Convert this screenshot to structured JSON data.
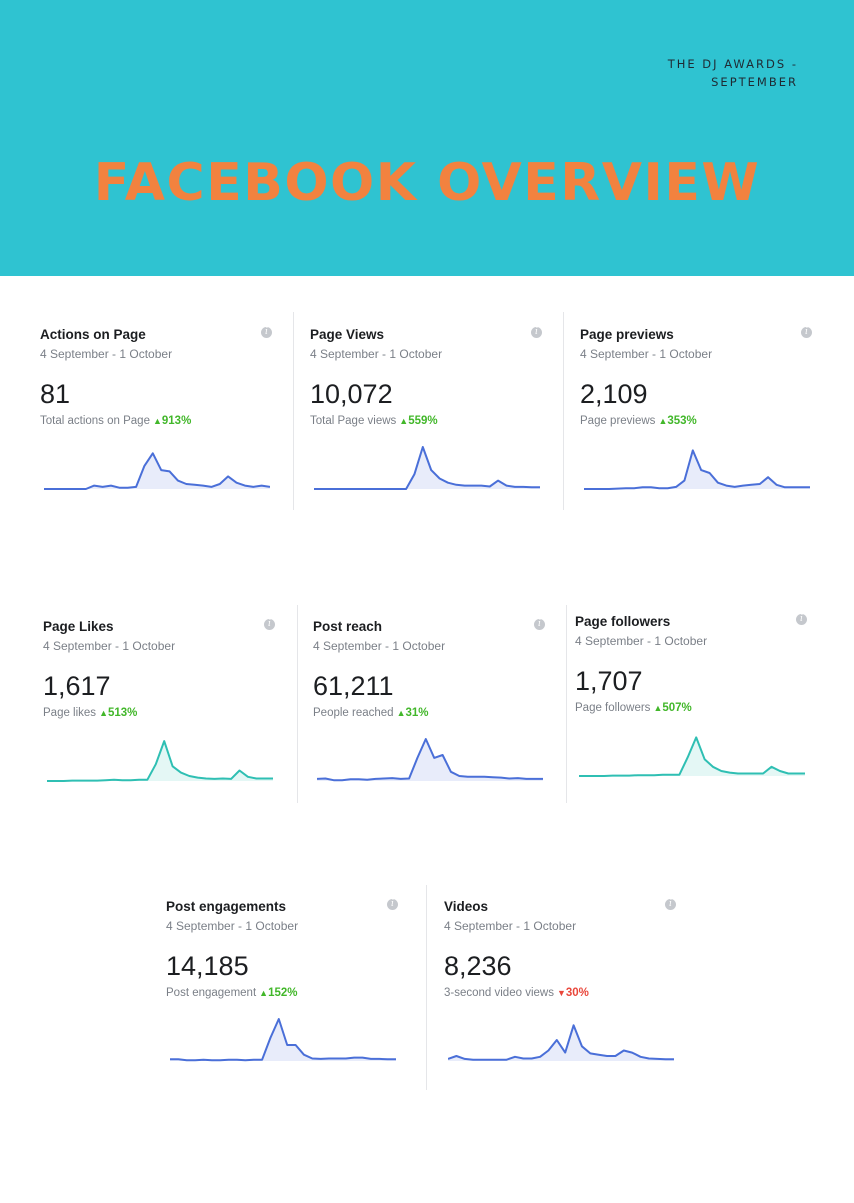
{
  "page": {
    "subtitle_line1": "THE DJ AWARDS -",
    "subtitle_line2": "SEPTEMBER",
    "title": "FACEBOOK OVERVIEW"
  },
  "colors": {
    "header_bg": "#2fc3d1",
    "title": "#f2823f",
    "blue_line": "#4a6fd8",
    "teal_line": "#2fbfb3",
    "positive": "#42b72a",
    "negative": "#e9473b"
  },
  "cards": [
    {
      "name": "Actions on Page",
      "date": "4 September - 1 October",
      "value": "81",
      "metric_label": "Total actions on Page",
      "change_arrow": "▲",
      "change": "913%",
      "trend": "up",
      "icon": "info-icon",
      "line_color": "blue",
      "spark": [
        0,
        0,
        0,
        0,
        0,
        0,
        0.08,
        0.05,
        0.08,
        0.03,
        0.03,
        0.05,
        0.55,
        0.85,
        0.45,
        0.42,
        0.2,
        0.12,
        0.1,
        0.08,
        0.05,
        0.12,
        0.3,
        0.15,
        0.08,
        0.05,
        0.08,
        0.05
      ]
    },
    {
      "name": "Page Views",
      "date": "4 September - 1 October",
      "value": "10,072",
      "metric_label": "Total Page views",
      "change_arrow": "▲",
      "change": "559%",
      "trend": "up",
      "icon": "info-icon",
      "line_color": "blue",
      "spark": [
        0,
        0,
        0,
        0,
        0,
        0,
        0,
        0,
        0,
        0,
        0,
        0,
        0.35,
        1.0,
        0.45,
        0.25,
        0.15,
        0.1,
        0.08,
        0.08,
        0.08,
        0.06,
        0.2,
        0.08,
        0.05,
        0.05,
        0.04,
        0.04
      ]
    },
    {
      "name": "Page previews",
      "date": "4 September - 1 October",
      "value": "2,109",
      "metric_label": "Page previews",
      "change_arrow": "▲",
      "change": "353%",
      "trend": "up",
      "icon": "info-icon",
      "line_color": "blue",
      "spark": [
        0,
        0,
        0,
        0,
        0.01,
        0.02,
        0.02,
        0.04,
        0.04,
        0.02,
        0.02,
        0.05,
        0.2,
        0.92,
        0.45,
        0.38,
        0.15,
        0.08,
        0.05,
        0.08,
        0.1,
        0.12,
        0.28,
        0.1,
        0.04,
        0.04,
        0.04,
        0.04
      ]
    },
    {
      "name": "Page Likes",
      "date": "4 September - 1 October",
      "value": "1,617",
      "metric_label": "Page likes",
      "change_arrow": "▲",
      "change": "513%",
      "trend": "up",
      "icon": "info-icon",
      "line_color": "teal",
      "spark": [
        0,
        0,
        0,
        0.01,
        0.01,
        0.01,
        0.01,
        0.02,
        0.03,
        0.02,
        0.02,
        0.03,
        0.03,
        0.4,
        0.95,
        0.35,
        0.2,
        0.12,
        0.08,
        0.06,
        0.05,
        0.06,
        0.05,
        0.25,
        0.1,
        0.06,
        0.06,
        0.06
      ]
    },
    {
      "name": "Post reach",
      "date": "4 September - 1 October",
      "value": "61,211",
      "metric_label": "People reached",
      "change_arrow": "▲",
      "change": "31%",
      "trend": "up",
      "icon": "info-icon",
      "line_color": "blue",
      "spark": [
        0.05,
        0.06,
        0.02,
        0.02,
        0.04,
        0.04,
        0.03,
        0.05,
        0.06,
        0.07,
        0.05,
        0.06,
        0.55,
        1.0,
        0.55,
        0.62,
        0.22,
        0.12,
        0.1,
        0.1,
        0.1,
        0.09,
        0.08,
        0.06,
        0.07,
        0.05,
        0.05,
        0.05
      ]
    },
    {
      "name": "Page followers",
      "date": "4 September - 1 October",
      "value": "1,707",
      "metric_label": "Page followers",
      "change_arrow": "▲",
      "change": "507%",
      "trend": "up",
      "icon": "info-icon",
      "line_color": "teal",
      "spark": [
        0,
        0,
        0,
        0,
        0.01,
        0.01,
        0.01,
        0.02,
        0.02,
        0.02,
        0.03,
        0.03,
        0.03,
        0.45,
        0.92,
        0.4,
        0.22,
        0.12,
        0.08,
        0.06,
        0.06,
        0.06,
        0.06,
        0.22,
        0.12,
        0.06,
        0.06,
        0.06
      ]
    },
    {
      "name": "Post engagements",
      "date": "4 September - 1 October",
      "value": "14,185",
      "metric_label": "Post engagement",
      "change_arrow": "▲",
      "change": "152%",
      "trend": "up",
      "icon": "info-icon",
      "line_color": "blue",
      "spark": [
        0.04,
        0.04,
        0.02,
        0.02,
        0.03,
        0.02,
        0.02,
        0.03,
        0.03,
        0.02,
        0.03,
        0.03,
        0.55,
        1.0,
        0.38,
        0.38,
        0.15,
        0.06,
        0.05,
        0.06,
        0.06,
        0.06,
        0.08,
        0.08,
        0.05,
        0.05,
        0.04,
        0.04
      ]
    },
    {
      "name": "Videos",
      "date": "4 September - 1 October",
      "value": "8,236",
      "metric_label": "3-second video views",
      "change_arrow": "▼",
      "change": "30%",
      "trend": "down",
      "icon": "info-icon",
      "line_color": "blue",
      "spark": [
        0.05,
        0.12,
        0.05,
        0.03,
        0.03,
        0.03,
        0.03,
        0.03,
        0.1,
        0.06,
        0.06,
        0.1,
        0.25,
        0.5,
        0.2,
        0.85,
        0.35,
        0.18,
        0.15,
        0.12,
        0.12,
        0.25,
        0.2,
        0.1,
        0.06,
        0.05,
        0.04,
        0.04
      ]
    }
  ]
}
